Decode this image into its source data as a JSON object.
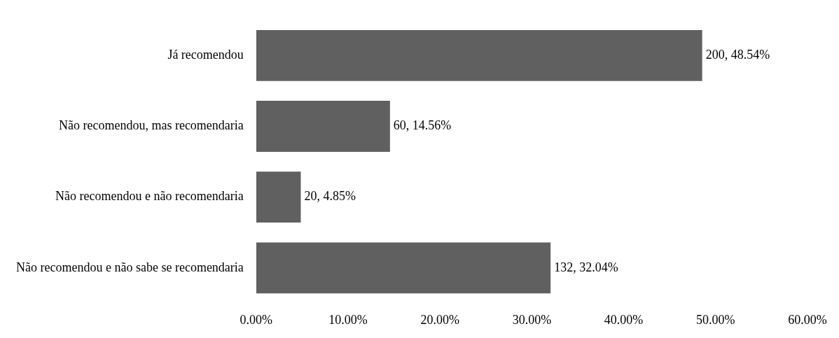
{
  "chart_data": {
    "type": "bar",
    "orientation": "horizontal",
    "categories": [
      "Já recomendou",
      "Não recomendou, mas recomendaria",
      "Não recomendou e não recomendaria",
      "Não recomendou e não sabe se recomendaria"
    ],
    "values": [
      48.54,
      14.56,
      4.85,
      32.04
    ],
    "color": "#606060",
    "value_labels": [
      "200, 48.54%",
      "60, 14.56%",
      "20, 4.85%",
      "132, 32.04%"
    ],
    "xlim": [
      0,
      60
    ],
    "xticks": [
      {
        "value": 0,
        "label": "0.00%"
      },
      {
        "value": 10,
        "label": "10.00%"
      },
      {
        "value": 20,
        "label": "20.00%"
      },
      {
        "value": 30,
        "label": "30.00%"
      },
      {
        "value": 40,
        "label": "40.00%"
      },
      {
        "value": 50,
        "label": "50.00%"
      },
      {
        "value": 60,
        "label": "60.00%"
      }
    ],
    "grid": false,
    "legend": false
  }
}
